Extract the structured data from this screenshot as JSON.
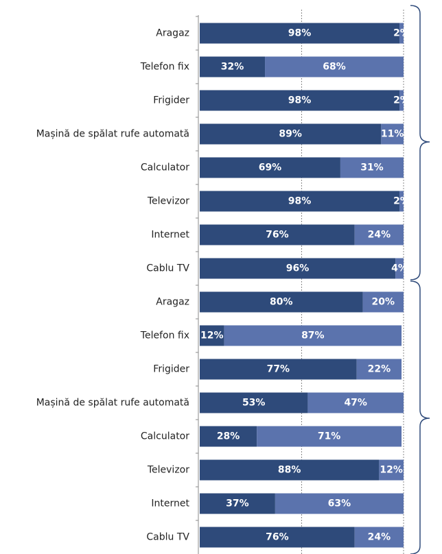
{
  "chart_data": {
    "type": "stacked-barh",
    "categories": [
      "Aragaz",
      "Telefon fix",
      "Frigider",
      "Mașină de spălat rufe automată",
      "Calculator",
      "Televizor",
      "Internet",
      "Cablu TV",
      "Aragaz",
      "Telefon fix",
      "Frigider",
      "Mașină de spălat rufe automată",
      "Calculator",
      "Televizor",
      "Internet",
      "Cablu TV"
    ],
    "series": [
      {
        "color": "#2e4a7a",
        "values": [
          98,
          32,
          98,
          89,
          69,
          98,
          76,
          96,
          80,
          12,
          77,
          53,
          28,
          88,
          37,
          76
        ],
        "value_labels": [
          "98%",
          "32%",
          "98%",
          "89%",
          "69%",
          "98%",
          "76%",
          "96%",
          "80%",
          "12%",
          "77%",
          "53%",
          "28%",
          "88%",
          "37%",
          "76%"
        ]
      },
      {
        "color": "#5b73ad",
        "values": [
          2,
          68,
          2,
          11,
          31,
          2,
          24,
          4,
          20,
          87,
          22,
          47,
          71,
          12,
          63,
          24
        ],
        "value_labels": [
          "2%",
          "68%",
          "2%",
          "11%",
          "31%",
          "2%",
          "24%",
          "4%",
          "20%",
          "87%",
          "22%",
          "47%",
          "71%",
          "12%",
          "63%",
          "24%"
        ]
      }
    ],
    "xlim": [
      0,
      100
    ],
    "xticks": [
      0,
      50,
      100
    ],
    "grid": true
  }
}
